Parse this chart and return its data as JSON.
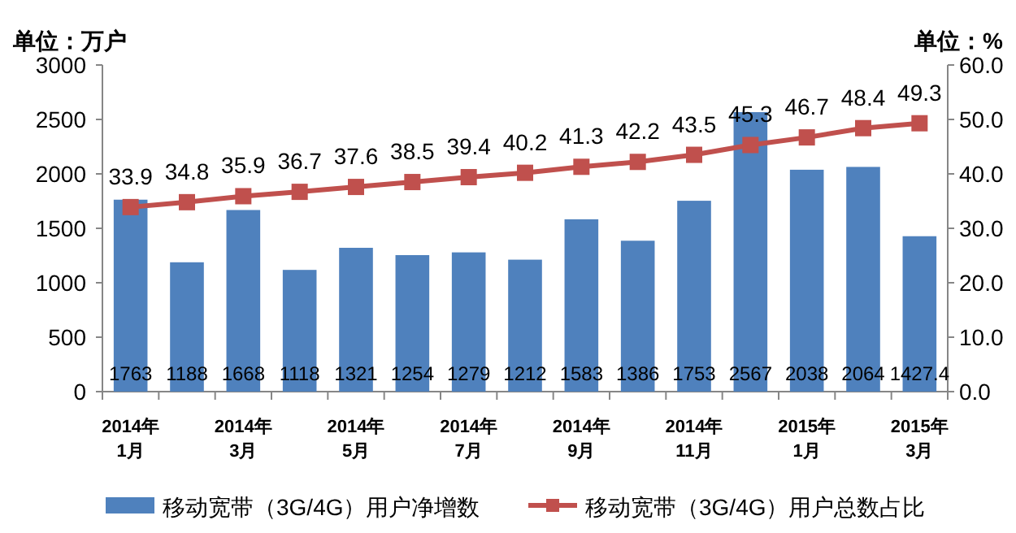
{
  "chart_data": {
    "type": "bar",
    "ylabel": "单位：万户",
    "y2label": "单位：%",
    "categories": [
      "2014年\n1月",
      null,
      "2014年\n3月",
      null,
      "2014年\n5月",
      null,
      "2014年\n7月",
      null,
      "2014年\n9月",
      null,
      "2014年\n11月",
      null,
      "2015年\n1月",
      null,
      "2015年\n3月"
    ],
    "series": [
      {
        "name": "移动宽带（3G/4G）用户净增数",
        "color": "#4f81bd",
        "values": [
          1763,
          1188,
          1668,
          1118,
          1321,
          1254,
          1279,
          1212,
          1583,
          1386,
          1753,
          2567,
          2038,
          2064,
          1427.4
        ]
      },
      {
        "name": "移动宽带（3G/4G）用户总数占比",
        "type": "line",
        "axis": "y2",
        "color": "#c0504d",
        "marker": "square",
        "values": [
          33.9,
          34.8,
          35.9,
          36.7,
          37.6,
          38.5,
          39.4,
          40.2,
          41.3,
          42.2,
          43.5,
          45.3,
          46.7,
          48.4,
          49.3
        ]
      }
    ],
    "ylim": [
      0,
      3000
    ],
    "yticks": [
      0,
      500,
      1000,
      1500,
      2000,
      2500,
      3000
    ],
    "y2lim": [
      0,
      60
    ],
    "y2ticks": [
      {
        "value": 0,
        "label": "0.0"
      },
      {
        "value": 10,
        "label": "10.0"
      },
      {
        "value": 20,
        "label": "20.0"
      },
      {
        "value": 30,
        "label": "30.0"
      },
      {
        "value": 40,
        "label": "40.0"
      },
      {
        "value": 50,
        "label": "50.0"
      },
      {
        "value": 60,
        "label": "60.0"
      }
    ],
    "data_labels": true,
    "legend": "bottom",
    "grid": false
  }
}
